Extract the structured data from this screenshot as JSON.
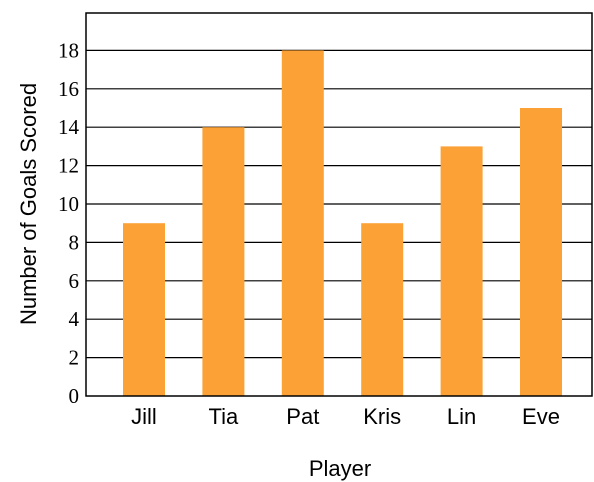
{
  "chart_data": {
    "type": "bar",
    "categories": [
      "Jill",
      "Tia",
      "Pat",
      "Kris",
      "Lin",
      "Eve"
    ],
    "values": [
      9,
      14,
      18,
      9,
      13,
      15
    ],
    "title": "",
    "xlabel": "Player",
    "ylabel": "Number of Goals Scored",
    "ylim": [
      0,
      20
    ],
    "yticks": [
      0,
      2,
      4,
      6,
      8,
      10,
      12,
      14,
      16,
      18
    ],
    "grid": true,
    "bar_color": "#FBA136"
  }
}
